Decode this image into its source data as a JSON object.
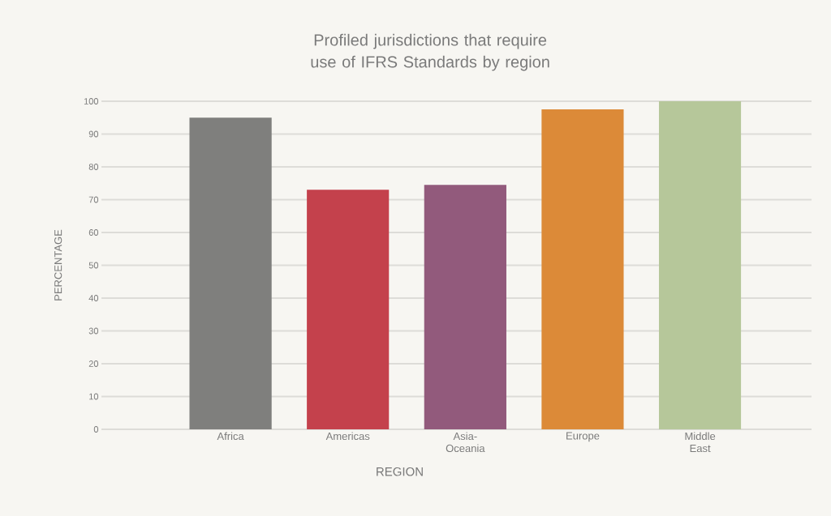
{
  "chart_data": {
    "type": "bar",
    "title": "Profiled jurisdictions that require use of IFRS Standards by region",
    "xlabel": "REGION",
    "ylabel": "PERCENTAGE",
    "categories": [
      "Africa",
      "Americas",
      "Asia-Oceania",
      "Europe",
      "Middle East"
    ],
    "values": [
      95,
      73,
      74.5,
      97.5,
      100
    ],
    "colors": [
      "#7f7f7d",
      "#c4414c",
      "#925a7c",
      "#dc8a38",
      "#b6c79a"
    ],
    "ylim": [
      0,
      100
    ],
    "yticks": [
      0,
      10,
      20,
      30,
      40,
      50,
      60,
      70,
      80,
      90,
      100
    ],
    "grid": "y"
  }
}
